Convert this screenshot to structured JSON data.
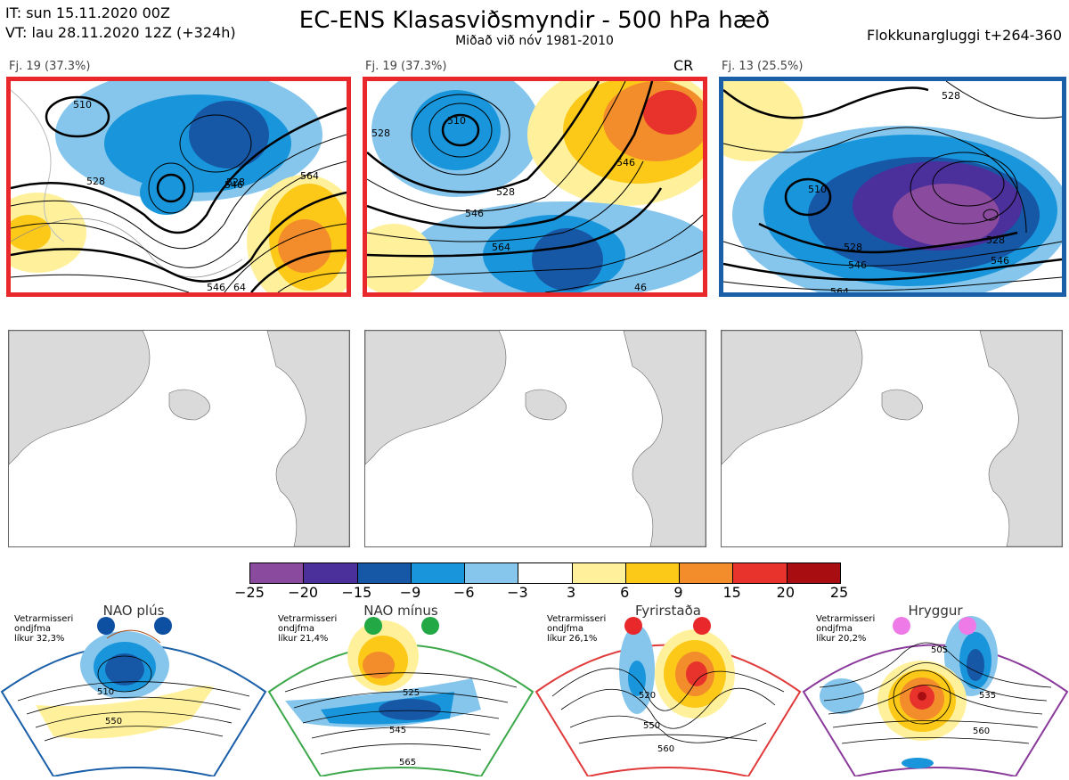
{
  "header": {
    "it_line": "IT: sun 15.11.2020 00Z",
    "vt_line": "VT: lau 28.11.2020 12Z  (+324h)",
    "title": "EC-ENS Klasasviðsmyndir - 500 hPa hæð",
    "subtitle": "Miðað við nóv 1981-2010",
    "window": "Flokkunargluggi t+264-360"
  },
  "clusters": [
    {
      "label": "Fj. 19 (37.3%)",
      "tag": "",
      "border_color": "#e8282b",
      "contours": [
        "510",
        "528",
        "546",
        "564",
        "546",
        "64",
        "528"
      ]
    },
    {
      "label": "Fj. 19 (37.3%)",
      "tag": "CR",
      "border_color": "#e8282b",
      "contours": [
        "528",
        "528",
        "546",
        "564",
        "546",
        "46",
        "510"
      ]
    },
    {
      "label": "Fj. 13 (25.5%)",
      "tag": "",
      "border_color": "#1a5fa8",
      "contours": [
        "510",
        "528",
        "546",
        "564",
        "528",
        "546",
        "528"
      ]
    }
  ],
  "colorbar": {
    "labels": [
      "−25",
      "−20",
      "−15",
      "−9",
      "−6",
      "−3",
      "3",
      "6",
      "9",
      "15",
      "20",
      "25"
    ],
    "colors": [
      "#8a4a9e",
      "#4b2f9a",
      "#1657a6",
      "#1996db",
      "#86c6ec",
      "#ffffff",
      "#fff19c",
      "#fcc918",
      "#f38c2a",
      "#e8322c",
      "#a80d12"
    ]
  },
  "regimes": [
    {
      "name": "NAO plús",
      "clim_line1": "Vetrarmisseri",
      "clim_line2": "ondjfma",
      "clim_line3": "líkur 32,3%",
      "color": "#1a5fa8",
      "dot_color": "#0d4fa0",
      "contours": [
        "510",
        "550"
      ]
    },
    {
      "name": "NAO mínus",
      "clim_line1": "Vetrarmisseri",
      "clim_line2": "ondjfma",
      "clim_line3": "líkur 21,4%",
      "color": "#3ca84a",
      "dot_color": "#22a844",
      "contours": [
        "525",
        "545",
        "565"
      ]
    },
    {
      "name": "Fyrirstaða",
      "clim_line1": "Vetrarmisseri",
      "clim_line2": "ondjfma",
      "clim_line3": "líkur 26,1%",
      "color": "#e03a3a",
      "dot_color": "#e8282b",
      "contours": [
        "520",
        "550",
        "560"
      ]
    },
    {
      "name": "Hryggur",
      "clim_line1": "Vetrarmisseri",
      "clim_line2": "ondjfma",
      "clim_line3": "líkur 20,2%",
      "color": "#8a3a9a",
      "dot_color": "#ee7ae8",
      "contours": [
        "505",
        "535",
        "560"
      ]
    }
  ]
}
